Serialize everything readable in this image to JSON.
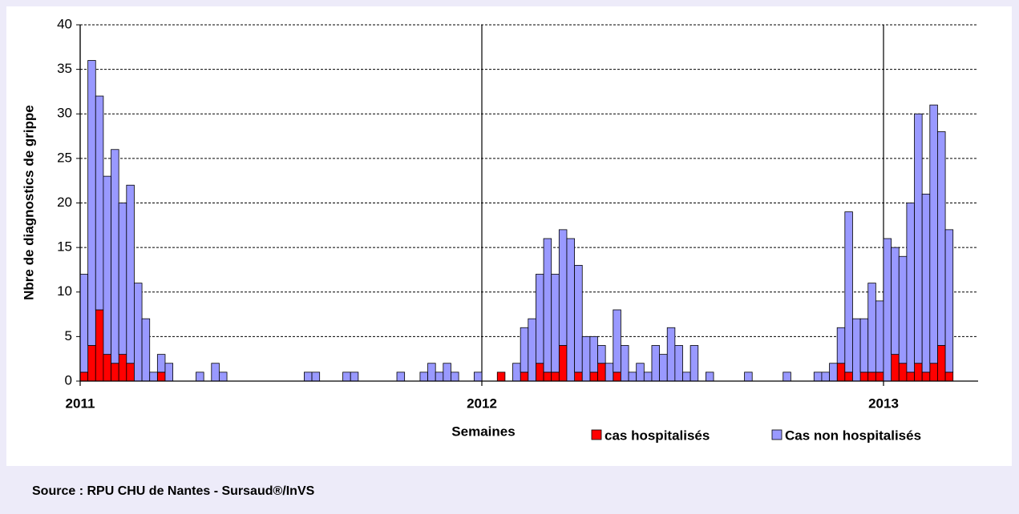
{
  "chart_data": {
    "type": "bar",
    "stacked": true,
    "y_label": "Nbre de diagnostics de grippe",
    "x_label": "Semaines",
    "source": "Source : RPU CHU de Nantes - Sursaud®/InVS",
    "categories": [
      "2011",
      null,
      null,
      null,
      null,
      null,
      null,
      null,
      null,
      null,
      null,
      null,
      null,
      null,
      null,
      null,
      null,
      null,
      null,
      null,
      null,
      null,
      null,
      null,
      null,
      null,
      null,
      null,
      null,
      null,
      null,
      null,
      null,
      null,
      null,
      null,
      null,
      null,
      null,
      null,
      null,
      null,
      null,
      null,
      null,
      null,
      null,
      null,
      null,
      null,
      null,
      null,
      "2012",
      null,
      null,
      null,
      null,
      null,
      null,
      null,
      null,
      null,
      null,
      null,
      null,
      null,
      null,
      null,
      null,
      null,
      null,
      null,
      null,
      null,
      null,
      null,
      null,
      null,
      null,
      null,
      null,
      null,
      null,
      null,
      null,
      null,
      null,
      null,
      null,
      null,
      null,
      null,
      null,
      null,
      null,
      null,
      null,
      null,
      null,
      null,
      null,
      null,
      null,
      null,
      "2013",
      null,
      null,
      null,
      null,
      null,
      null,
      null,
      null
    ],
    "series": [
      {
        "name": "cas hospitalisés",
        "color": "#ff0000",
        "values": [
          1,
          4,
          8,
          3,
          2,
          3,
          2,
          0,
          0,
          0,
          1,
          0,
          0,
          0,
          0,
          0,
          0,
          0,
          0,
          0,
          0,
          0,
          0,
          0,
          0,
          0,
          0,
          0,
          0,
          0,
          0,
          0,
          0,
          0,
          0,
          0,
          0,
          0,
          0,
          0,
          0,
          0,
          0,
          0,
          0,
          0,
          0,
          0,
          0,
          0,
          0,
          0,
          0,
          0,
          1,
          0,
          0,
          1,
          0,
          2,
          1,
          1,
          4,
          0,
          1,
          0,
          1,
          2,
          0,
          1,
          0,
          0,
          0,
          0,
          0,
          0,
          0,
          0,
          0,
          0,
          0,
          0,
          0,
          0,
          0,
          0,
          0,
          0,
          0,
          0,
          0,
          0,
          0,
          0,
          0,
          0,
          0,
          0,
          2,
          1,
          0,
          1,
          1,
          1,
          0,
          3,
          2,
          1,
          2,
          1,
          2,
          4,
          1
        ]
      },
      {
        "name": "Cas non hospitalisés",
        "color": "#9999ff",
        "values": [
          11,
          32,
          24,
          20,
          24,
          17,
          20,
          11,
          7,
          1,
          2,
          2,
          0,
          0,
          0,
          1,
          0,
          2,
          1,
          0,
          0,
          0,
          0,
          0,
          0,
          0,
          0,
          0,
          0,
          1,
          1,
          0,
          0,
          0,
          1,
          1,
          0,
          0,
          0,
          0,
          0,
          1,
          0,
          0,
          1,
          2,
          1,
          2,
          1,
          0,
          0,
          1,
          0,
          0,
          0,
          0,
          2,
          5,
          7,
          10,
          15,
          11,
          13,
          16,
          12,
          5,
          4,
          2,
          2,
          7,
          4,
          1,
          2,
          1,
          4,
          3,
          6,
          4,
          1,
          4,
          0,
          1,
          0,
          0,
          0,
          0,
          1,
          0,
          0,
          0,
          0,
          1,
          0,
          0,
          0,
          1,
          1,
          2,
          4,
          18,
          7,
          6,
          10,
          8,
          16,
          12,
          12,
          19,
          28,
          20,
          29,
          24,
          16
        ]
      }
    ],
    "ylim": [
      0,
      40
    ],
    "yticks": [
      0,
      5,
      10,
      15,
      20,
      25,
      30,
      35,
      40
    ],
    "grid": true
  }
}
